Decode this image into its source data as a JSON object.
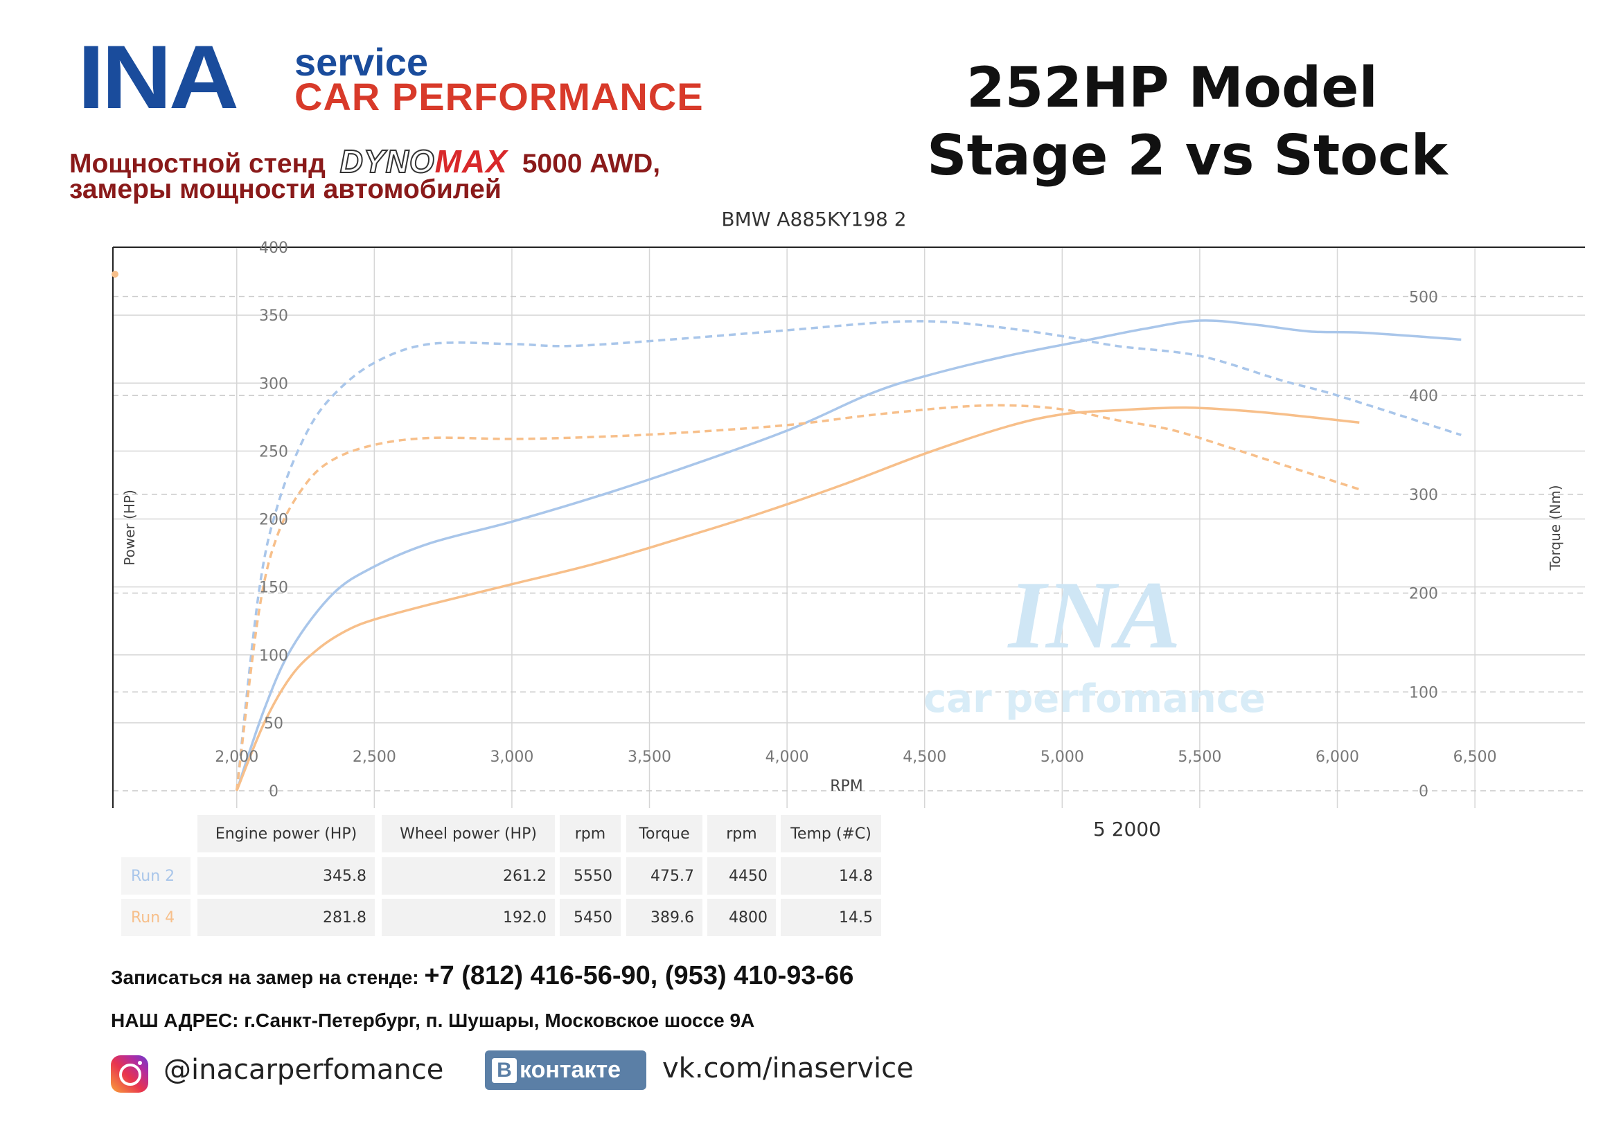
{
  "header": {
    "logo_ina": "INA",
    "logo_service": "service",
    "logo_car_performance": "CAR PERFORMANCE",
    "stand_prefix": "Мощностной стенд",
    "stand_brand_dyno": "DYNO",
    "stand_brand_max": "MAX",
    "stand_suffix": "5000 AWD,",
    "stand_line2": "замеры мощности автомобилей",
    "title_line1": "252HP Model",
    "title_line2": "Stage 2 vs Stock"
  },
  "colors": {
    "run2": "#a9c6ea",
    "run4": "#f7bf8a",
    "brand_blue": "#1a4c9c",
    "brand_red": "#d83a2a"
  },
  "chart_data": {
    "type": "line",
    "title": "BMW A885KY198 2",
    "xlabel": "RPM",
    "ylabel_left": "Power (HP)",
    "ylabel_right": "Torque (Nm)",
    "x_ticks": [
      "2,000",
      "2,500",
      "3,000",
      "3,500",
      "4,000",
      "4,500",
      "5,000",
      "5,500",
      "6,000",
      "6,500"
    ],
    "x_tick_values": [
      2000,
      2500,
      3000,
      3500,
      4000,
      4500,
      5000,
      5500,
      6000,
      6500
    ],
    "y_left_ticks": [
      "0",
      "50",
      "100",
      "150",
      "200",
      "250",
      "300",
      "350",
      "400"
    ],
    "y_left_tick_values": [
      0,
      50,
      100,
      150,
      200,
      250,
      300,
      350,
      400
    ],
    "y_right_ticks": [
      "0",
      "100",
      "200",
      "300",
      "400",
      "500"
    ],
    "y_right_tick_values": [
      0,
      100,
      200,
      300,
      400,
      500
    ],
    "xlim": [
      1550,
      6900
    ],
    "ylim_left": [
      0,
      400
    ],
    "ylim_right": [
      0,
      550
    ],
    "grid": true,
    "watermark_main": "INA",
    "watermark_sub": "car perfomance",
    "cursor_label": "5 2000",
    "series": [
      {
        "run": "Run 2",
        "quantity": "power",
        "axis": "left",
        "style": "solid",
        "color": "#a9c6ea",
        "x": [
          2000,
          2100,
          2200,
          2350,
          2500,
          2700,
          3000,
          3300,
          3600,
          4000,
          4300,
          4500,
          4800,
          5100,
          5300,
          5500,
          5700,
          5900,
          6100,
          6450
        ],
        "y": [
          0,
          60,
          105,
          145,
          165,
          182,
          198,
          216,
          236,
          265,
          292,
          305,
          320,
          332,
          340,
          346,
          343,
          338,
          337,
          332
        ]
      },
      {
        "run": "Run 2",
        "quantity": "torque",
        "axis": "right",
        "style": "dashed",
        "color": "#a9c6ea",
        "x": [
          2000,
          2080,
          2150,
          2250,
          2350,
          2500,
          2700,
          3000,
          3200,
          3500,
          4000,
          4300,
          4450,
          4600,
          4800,
          5000,
          5200,
          5500,
          5800,
          6000,
          6450
        ],
        "y": [
          0,
          200,
          290,
          360,
          400,
          433,
          452,
          452,
          450,
          455,
          466,
          473,
          475,
          474,
          468,
          460,
          450,
          440,
          415,
          400,
          360
        ]
      },
      {
        "run": "Run 4",
        "quantity": "power",
        "axis": "left",
        "style": "solid",
        "color": "#f7bf8a",
        "x": [
          2000,
          2100,
          2200,
          2300,
          2400,
          2500,
          2700,
          3000,
          3300,
          3600,
          3900,
          4200,
          4500,
          4800,
          5000,
          5200,
          5450,
          5700,
          5900,
          6080
        ],
        "y": [
          0,
          50,
          85,
          105,
          118,
          126,
          137,
          152,
          167,
          185,
          204,
          225,
          248,
          268,
          277,
          280,
          282,
          279,
          275,
          271
        ]
      },
      {
        "run": "Run 4",
        "quantity": "torque",
        "axis": "right",
        "style": "dashed",
        "color": "#f7bf8a",
        "x": [
          2000,
          2080,
          2150,
          2250,
          2350,
          2500,
          2700,
          3000,
          3300,
          3600,
          4000,
          4300,
          4600,
          4800,
          5000,
          5200,
          5400,
          5600,
          5800,
          6080
        ],
        "y": [
          0,
          180,
          260,
          310,
          335,
          350,
          357,
          356,
          358,
          362,
          370,
          380,
          388,
          390,
          386,
          375,
          365,
          348,
          330,
          305
        ]
      }
    ],
    "table": {
      "headers": [
        "Engine power (HP)",
        "Wheel power (HP)",
        "rpm",
        "Torque",
        "rpm",
        "Temp (#C)"
      ],
      "rows": [
        {
          "label": "Run 2",
          "values": [
            "345.8",
            "261.2",
            "5550",
            "475.7",
            "4450",
            "14.8"
          ]
        },
        {
          "label": "Run 4",
          "values": [
            "281.8",
            "192.0",
            "5450",
            "389.6",
            "4800",
            "14.5"
          ]
        }
      ]
    }
  },
  "footer": {
    "booking_text": "Записаться на замер на стенде:",
    "phones": "+7 (812) 416-56-90, (953) 410-93-66",
    "address": "НАШ  АДРЕС:  г.Санкт-Петербург, п. Шушары, Московское шоссе 9А",
    "instagram": "@inacarperfomance",
    "vk_badge_b": "B",
    "vk_badge_text": "контакте",
    "vk_url": "vk.com/inaservice"
  }
}
